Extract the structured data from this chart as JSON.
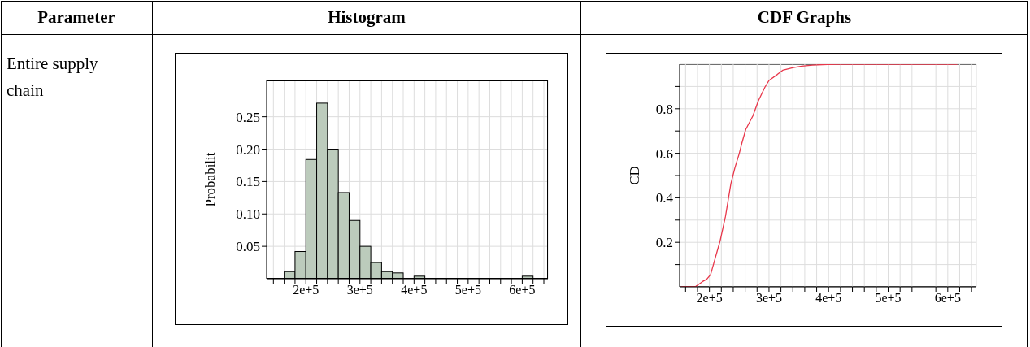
{
  "chart_data": [
    {
      "type": "histogram",
      "title": "Histogram",
      "annotations": [
        "Parameter",
        "Entire supply chain"
      ],
      "ylabel": "Probabilit",
      "bins": [
        160000,
        180000,
        200000,
        220000,
        240000,
        260000,
        280000,
        300000,
        320000,
        340000,
        360000,
        380000,
        400000,
        420000,
        440000,
        460000,
        480000,
        500000,
        520000,
        540000,
        560000,
        580000,
        600000,
        620000
      ],
      "values": [
        0.011,
        0.042,
        0.184,
        0.271,
        0.2,
        0.133,
        0.09,
        0.05,
        0.025,
        0.011,
        0.009,
        0,
        0.004,
        0,
        0,
        0,
        0,
        0,
        0,
        0,
        0,
        0,
        0.004
      ],
      "color": "#bccbbc",
      "xlim": [
        127500,
        647500
      ],
      "xticks": [
        {
          "value": 140000,
          "label": null
        },
        {
          "value": 160000,
          "label": null
        },
        {
          "value": 180000,
          "label": null
        },
        {
          "value": 200000,
          "label": "2e+5"
        },
        {
          "value": 220000,
          "label": null
        },
        {
          "value": 240000,
          "label": null
        },
        {
          "value": 260000,
          "label": null
        },
        {
          "value": 280000,
          "label": null
        },
        {
          "value": 300000,
          "label": "3e+5"
        },
        {
          "value": 320000,
          "label": null
        },
        {
          "value": 340000,
          "label": null
        },
        {
          "value": 360000,
          "label": null
        },
        {
          "value": 380000,
          "label": null
        },
        {
          "value": 400000,
          "label": "4e+5"
        },
        {
          "value": 420000,
          "label": null
        },
        {
          "value": 440000,
          "label": null
        },
        {
          "value": 460000,
          "label": null
        },
        {
          "value": 480000,
          "label": null
        },
        {
          "value": 500000,
          "label": "5e+5"
        },
        {
          "value": 520000,
          "label": null
        },
        {
          "value": 540000,
          "label": null
        },
        {
          "value": 560000,
          "label": null
        },
        {
          "value": 580000,
          "label": null
        },
        {
          "value": 600000,
          "label": "6e+5"
        },
        {
          "value": 620000,
          "label": null
        },
        {
          "value": 640000,
          "label": null
        }
      ],
      "ylim": [
        0,
        0.306
      ],
      "yticks": [
        {
          "value": 0.05,
          "label": "0.05"
        },
        {
          "value": 0.1,
          "label": "0.10"
        },
        {
          "value": 0.15,
          "label": "0.15"
        },
        {
          "value": 0.2,
          "label": "0.20"
        },
        {
          "value": 0.25,
          "label": "0.25"
        }
      ],
      "grid": true
    },
    {
      "type": "line",
      "title": "CDF Graphs",
      "ylabel": "CD",
      "color": "#e8364a",
      "marker": "none",
      "x": [
        152000,
        177000,
        188600,
        195500,
        202000,
        209000,
        218000,
        227000,
        236000,
        243000,
        250000,
        254500,
        261000,
        273000,
        282000,
        293000,
        300000,
        314000,
        323000,
        341000,
        355000,
        373000,
        400000,
        418000,
        616000
      ],
      "values": [
        0,
        0.002,
        0.024,
        0.034,
        0.055,
        0.122,
        0.207,
        0.317,
        0.463,
        0.537,
        0.598,
        0.646,
        0.707,
        0.768,
        0.835,
        0.896,
        0.927,
        0.954,
        0.973,
        0.985,
        0.991,
        0.996,
        0.999,
        1,
        1
      ],
      "xlim": [
        150000,
        648000
      ],
      "xticks": [
        {
          "value": 160000,
          "label": null
        },
        {
          "value": 180000,
          "label": null
        },
        {
          "value": 200000,
          "label": "2e+5"
        },
        {
          "value": 220000,
          "label": null
        },
        {
          "value": 240000,
          "label": null
        },
        {
          "value": 260000,
          "label": null
        },
        {
          "value": 280000,
          "label": null
        },
        {
          "value": 300000,
          "label": "3e+5"
        },
        {
          "value": 320000,
          "label": null
        },
        {
          "value": 340000,
          "label": null
        },
        {
          "value": 360000,
          "label": null
        },
        {
          "value": 380000,
          "label": null
        },
        {
          "value": 400000,
          "label": "4e+5"
        },
        {
          "value": 420000,
          "label": null
        },
        {
          "value": 440000,
          "label": null
        },
        {
          "value": 460000,
          "label": null
        },
        {
          "value": 480000,
          "label": null
        },
        {
          "value": 500000,
          "label": "5e+5"
        },
        {
          "value": 520000,
          "label": null
        },
        {
          "value": 540000,
          "label": null
        },
        {
          "value": 560000,
          "label": null
        },
        {
          "value": 580000,
          "label": null
        },
        {
          "value": 600000,
          "label": "6e+5"
        },
        {
          "value": 620000,
          "label": null
        },
        {
          "value": 640000,
          "label": null
        }
      ],
      "ylim": [
        0,
        1
      ],
      "yticks": [
        {
          "value": 0.1,
          "label": null
        },
        {
          "value": 0.2,
          "label": "0.2"
        },
        {
          "value": 0.3,
          "label": null
        },
        {
          "value": 0.4,
          "label": "0.4"
        },
        {
          "value": 0.5,
          "label": null
        },
        {
          "value": 0.6,
          "label": "0.6"
        },
        {
          "value": 0.7,
          "label": null
        },
        {
          "value": 0.8,
          "label": "0.8"
        },
        {
          "value": 0.9,
          "label": null
        }
      ],
      "grid": true
    }
  ]
}
